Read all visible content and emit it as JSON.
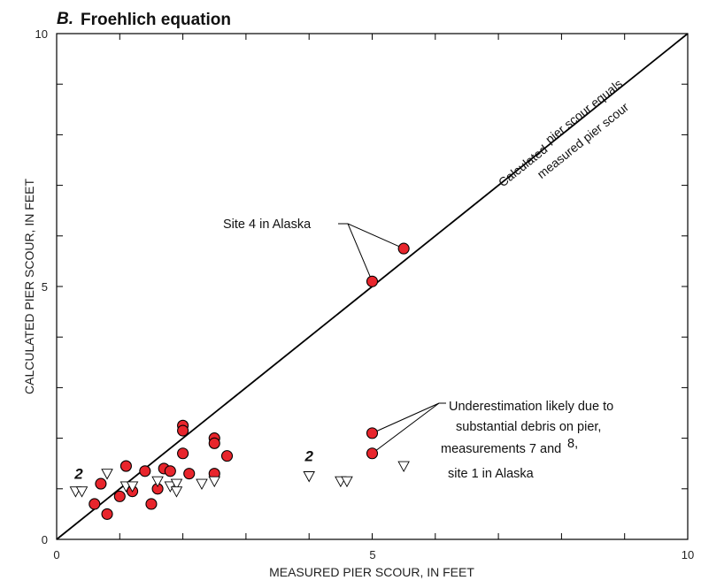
{
  "chart_data": {
    "type": "scatter",
    "panel_letter": "B.",
    "title": "Froehlich equation",
    "xlabel": "MEASURED PIER SCOUR, IN FEET",
    "ylabel": "CALCULATED PIER SCOUR, IN FEET",
    "xlim": [
      0,
      10
    ],
    "ylim": [
      0,
      10
    ],
    "x_tick_labels": [
      "0",
      "5",
      "10"
    ],
    "y_tick_labels": [
      "0",
      "5",
      "10"
    ],
    "grid": false,
    "series": [
      {
        "marker": "filled-circle",
        "color": "#e8252c",
        "points": [
          {
            "x": 0.6,
            "y": 0.7
          },
          {
            "x": 0.7,
            "y": 1.1
          },
          {
            "x": 0.8,
            "y": 0.5
          },
          {
            "x": 1.0,
            "y": 0.85
          },
          {
            "x": 1.1,
            "y": 1.45
          },
          {
            "x": 1.2,
            "y": 0.95
          },
          {
            "x": 1.4,
            "y": 1.35
          },
          {
            "x": 1.5,
            "y": 0.7
          },
          {
            "x": 1.6,
            "y": 1.0
          },
          {
            "x": 1.7,
            "y": 1.4
          },
          {
            "x": 1.8,
            "y": 1.35
          },
          {
            "x": 2.0,
            "y": 2.25
          },
          {
            "x": 2.0,
            "y": 2.15
          },
          {
            "x": 2.0,
            "y": 1.7
          },
          {
            "x": 2.1,
            "y": 1.3
          },
          {
            "x": 2.5,
            "y": 2.0
          },
          {
            "x": 2.5,
            "y": 1.9
          },
          {
            "x": 2.5,
            "y": 1.3
          },
          {
            "x": 2.7,
            "y": 1.65
          },
          {
            "x": 5.0,
            "y": 5.1
          },
          {
            "x": 5.5,
            "y": 5.75
          },
          {
            "x": 5.0,
            "y": 2.1
          },
          {
            "x": 5.0,
            "y": 1.7
          }
        ]
      },
      {
        "marker": "open-triangle-down",
        "color": "#000000",
        "points": [
          {
            "x": 0.3,
            "y": 0.95
          },
          {
            "x": 0.4,
            "y": 0.95
          },
          {
            "x": 0.8,
            "y": 1.3
          },
          {
            "x": 1.1,
            "y": 1.05
          },
          {
            "x": 1.2,
            "y": 1.05
          },
          {
            "x": 1.6,
            "y": 1.15
          },
          {
            "x": 1.8,
            "y": 1.05
          },
          {
            "x": 1.9,
            "y": 1.1
          },
          {
            "x": 1.9,
            "y": 0.95
          },
          {
            "x": 2.3,
            "y": 1.1
          },
          {
            "x": 2.5,
            "y": 1.15
          },
          {
            "x": 4.0,
            "y": 1.25
          },
          {
            "x": 4.5,
            "y": 1.15
          },
          {
            "x": 4.6,
            "y": 1.15
          },
          {
            "x": 5.5,
            "y": 1.45
          }
        ]
      }
    ],
    "equality_line": {
      "from": [
        0,
        0
      ],
      "to": [
        10,
        10
      ],
      "label_part1": "Calculated",
      "label_part2": "pier scour equals",
      "label_part3": "measured pier scour"
    },
    "overlap_counts": [
      {
        "text": "2",
        "x": 0.35,
        "y": 1.2
      },
      {
        "text": "2",
        "x": 4.0,
        "y": 1.55
      }
    ],
    "annotations": [
      {
        "text_lines": [
          "Site 4 in Alaska"
        ],
        "targets": [
          {
            "x": 5.0,
            "y": 5.1
          },
          {
            "x": 5.5,
            "y": 5.75
          }
        ]
      },
      {
        "text_lines": [
          "Underestimation likely due to",
          "substantial debris on pier,",
          "measurements 7 and",
          "8,",
          "site 1 in Alaska"
        ],
        "targets": [
          {
            "x": 5.0,
            "y": 2.1
          },
          {
            "x": 5.0,
            "y": 1.7
          }
        ]
      }
    ]
  }
}
